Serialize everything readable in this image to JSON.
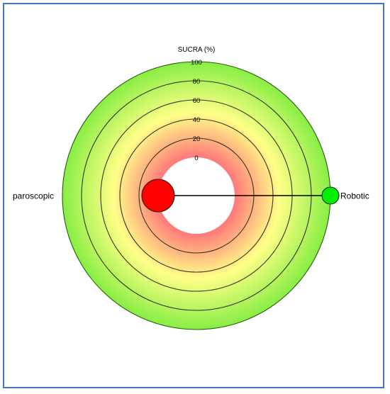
{
  "chart_data": {
    "type": "radial_sucra",
    "title": "SUCRA (%)",
    "rlim": [
      0,
      100
    ],
    "ring_ticks": [
      0,
      20,
      40,
      60,
      80,
      100
    ],
    "ring_tick_labels": [
      "0",
      "20",
      "40",
      "60",
      "80",
      "100"
    ],
    "treatments": [
      {
        "name": "Laparoscopic",
        "sucra": 0,
        "color": "#ff0000",
        "display_label": "paroscopic"
      },
      {
        "name": "Robotic",
        "sucra": 100,
        "color": "#00ee00",
        "display_label": "Robotic"
      }
    ],
    "gradient_colors": [
      "#ff7a7a",
      "#ffff88",
      "#88ee44"
    ],
    "frame_color": "#4472c4"
  }
}
